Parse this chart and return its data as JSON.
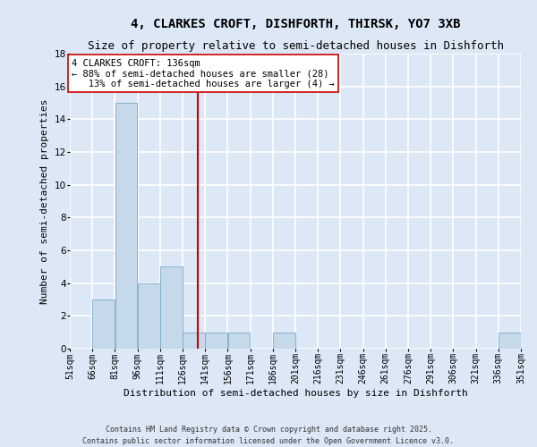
{
  "title1": "4, CLARKES CROFT, DISHFORTH, THIRSK, YO7 3XB",
  "title2": "Size of property relative to semi-detached houses in Dishforth",
  "xlabel": "Distribution of semi-detached houses by size in Dishforth",
  "ylabel": "Number of semi-detached properties",
  "bins_left": [
    51,
    66,
    81,
    96,
    111,
    126,
    141,
    156,
    171,
    186,
    201,
    216,
    231,
    246,
    261,
    276,
    291,
    306,
    321,
    336
  ],
  "counts": [
    0,
    3,
    15,
    4,
    5,
    1,
    1,
    1,
    0,
    1,
    0,
    0,
    0,
    0,
    0,
    0,
    0,
    0,
    0,
    1
  ],
  "bin_width": 15,
  "bar_color": "#c6d9ea",
  "bar_edge_color": "#7aaac8",
  "vline_x": 136,
  "vline_color": "#cc0000",
  "annotation_text": "4 CLARKES CROFT: 136sqm\n← 88% of semi-detached houses are smaller (28)\n   13% of semi-detached houses are larger (4) →",
  "annotation_box_color": "white",
  "annotation_box_edge": "#cc0000",
  "ylim": [
    0,
    18
  ],
  "yticks": [
    0,
    2,
    4,
    6,
    8,
    10,
    12,
    14,
    16,
    18
  ],
  "xlim_left": 51,
  "xlim_right": 351,
  "background_color": "#dce8f5",
  "grid_color": "white",
  "tick_labels": [
    "51sqm",
    "66sqm",
    "81sqm",
    "96sqm",
    "111sqm",
    "126sqm",
    "141sqm",
    "156sqm",
    "171sqm",
    "186sqm",
    "201sqm",
    "216sqm",
    "231sqm",
    "246sqm",
    "261sqm",
    "276sqm",
    "291sqm",
    "306sqm",
    "321sqm",
    "336sqm",
    "351sqm"
  ],
  "footnote1": "Contains HM Land Registry data © Crown copyright and database right 2025.",
  "footnote2": "Contains public sector information licensed under the Open Government Licence v3.0.",
  "title_fontsize": 10,
  "subtitle_fontsize": 9,
  "axis_label_fontsize": 8,
  "tick_fontsize": 7,
  "annotation_fontsize": 7.5,
  "footnote_fontsize": 6
}
